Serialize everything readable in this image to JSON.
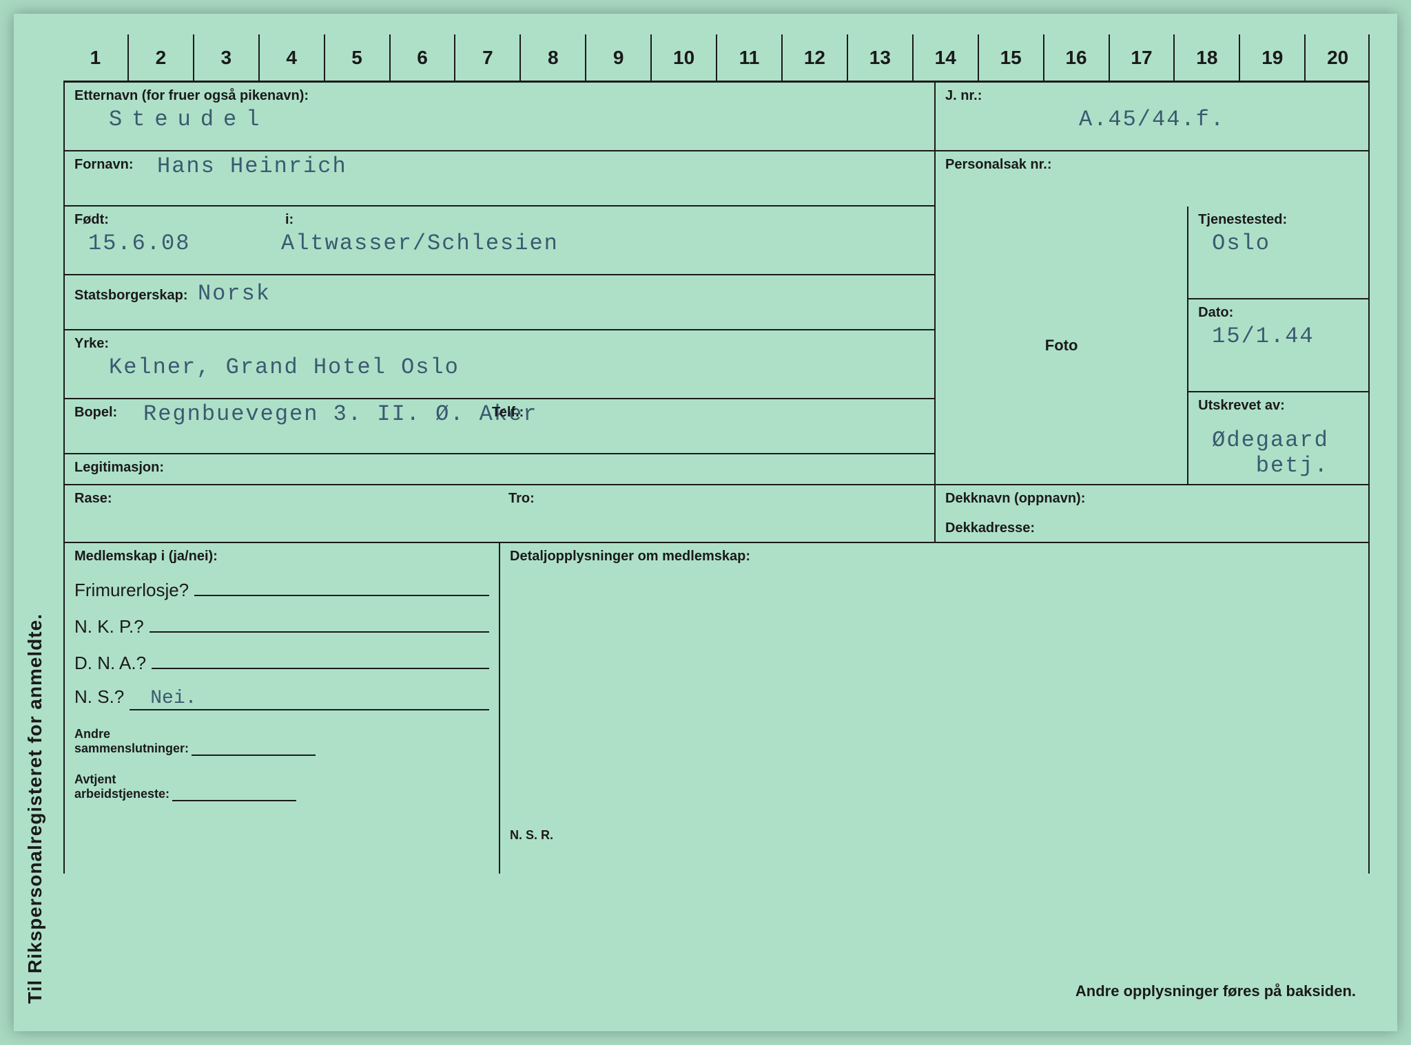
{
  "sidebar": "Til Rikspersonalregisteret for anmeldte.",
  "ruler": [
    "1",
    "2",
    "3",
    "4",
    "5",
    "6",
    "7",
    "8",
    "9",
    "10",
    "11",
    "12",
    "13",
    "14",
    "15",
    "16",
    "17",
    "18",
    "19",
    "20"
  ],
  "labels": {
    "etternavn": "Etternavn (for fruer også pikenavn):",
    "jnr": "J. nr.:",
    "fornavn": "Fornavn:",
    "personalsak": "Personalsak nr.:",
    "fodt": "Født:",
    "i": "i:",
    "statsb": "Statsborgerskap:",
    "yrke": "Yrke:",
    "bopel": "Bopel:",
    "telf": "Telf.:",
    "legit": "Legitimasjon:",
    "tjenestested": "Tjenestested:",
    "dato": "Dato:",
    "utskrevet": "Utskrevet av:",
    "foto": "Foto",
    "rase": "Rase:",
    "tro": "Tro:",
    "dekknavn": "Dekknavn (oppnavn):",
    "dekkadresse": "Dekkadresse:",
    "medlemskap": "Medlemskap i (ja/nei):",
    "detalj": "Detaljopplysninger om medlemskap:",
    "frimurer": "Frimurerlosje?",
    "nkp": "N. K. P.?",
    "dna": "D. N. A.?",
    "ns": "N. S.?",
    "andre_samm": "Andre\nsammenslutninger:",
    "avtjent": "Avtjent\narbeidstjeneste:",
    "nsr": "N. S. R.",
    "footer_right": "Andre opplysninger føres på baksiden."
  },
  "values": {
    "etternavn": "Steudel",
    "jnr": "A.45/44.f.",
    "fornavn": "Hans Heinrich",
    "personalsak": "",
    "fodt": "15.6.08",
    "fodested": "Altwasser/Schlesien",
    "statsb": "Norsk",
    "yrke": "Kelner, Grand Hotel  Oslo",
    "bopel": "Regnbuevegen 3. II.  Ø. Aker",
    "telf": "",
    "legit": "",
    "tjenestested": "Oslo",
    "dato": "15/1.44",
    "utskrevet": "Ødegaard\n   betj.",
    "rase": "",
    "tro": "",
    "dekknavn": "",
    "dekkadresse": "",
    "frimurer": "",
    "nkp": "",
    "dna": "",
    "ns": "Nei.",
    "andre_samm": "",
    "avtjent": ""
  },
  "colors": {
    "card_bg": "#aee0c8",
    "ink": "#1a1a1a",
    "typed": "#3a5a70"
  }
}
